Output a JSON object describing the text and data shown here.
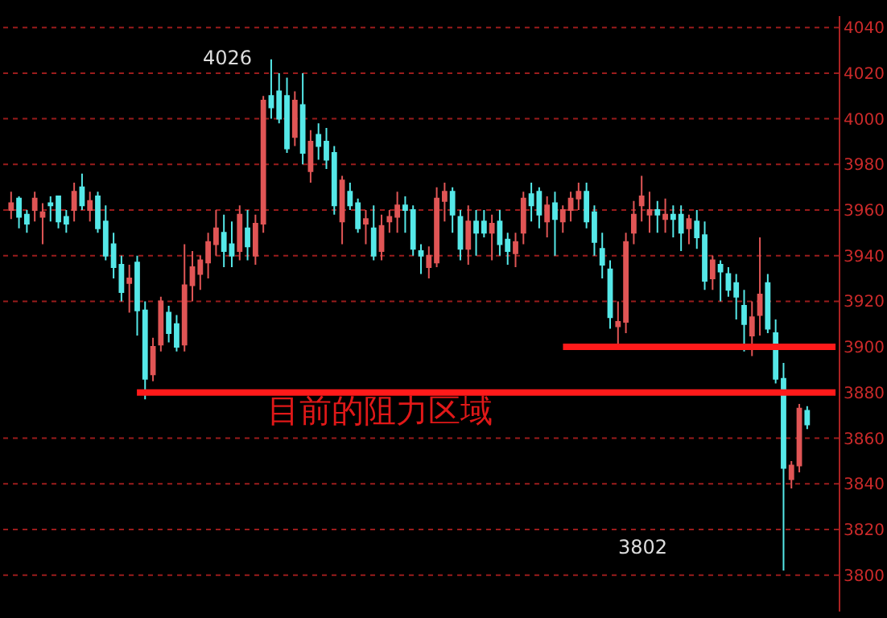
{
  "chart_data": {
    "type": "candlestick",
    "categories": [
      null,
      null,
      null,
      null,
      null,
      null,
      null,
      null,
      null,
      null,
      null,
      null,
      null,
      null,
      null,
      null,
      null,
      null,
      null,
      null,
      null,
      null,
      null,
      null,
      null,
      null,
      null,
      null,
      null,
      null,
      null,
      null,
      null,
      null,
      null,
      null,
      null,
      null,
      null,
      null,
      null,
      null,
      null,
      null,
      null,
      null,
      null,
      null,
      null,
      null,
      null,
      null,
      null,
      null,
      null,
      null,
      null,
      null,
      null,
      null,
      null,
      null,
      null,
      null,
      null,
      null,
      null,
      null,
      null,
      null,
      null,
      null,
      null,
      null,
      null,
      null,
      null,
      null,
      null,
      null,
      null,
      null,
      null,
      null,
      null,
      null,
      null,
      null,
      null,
      null,
      null,
      null,
      null,
      null,
      null,
      null,
      null,
      null,
      null,
      null,
      null,
      null
    ],
    "ohlc": [
      [
        3960,
        3968,
        3956,
        3963
      ],
      [
        3965,
        3966,
        3952,
        3957
      ],
      [
        3958,
        3960,
        3950,
        3954
      ],
      [
        3960,
        3968,
        3955,
        3965
      ],
      [
        3957,
        3963,
        3945,
        3959
      ],
      [
        3963,
        3966,
        3955,
        3962
      ],
      [
        3966,
        3966,
        3952,
        3955
      ],
      [
        3957,
        3960,
        3950,
        3954
      ],
      [
        3960,
        3972,
        3955,
        3968
      ],
      [
        3970,
        3976,
        3960,
        3962
      ],
      [
        3960,
        3968,
        3955,
        3964
      ],
      [
        3966,
        3968,
        3950,
        3952
      ],
      [
        3955,
        3962,
        3938,
        3940
      ],
      [
        3945,
        3950,
        3930,
        3935
      ],
      [
        3936,
        3940,
        3920,
        3924
      ],
      [
        3928,
        3936,
        3915,
        3930
      ],
      [
        3937,
        3940,
        3905,
        3916
      ],
      [
        3916,
        3920,
        3877,
        3886
      ],
      [
        3888,
        3904,
        3885,
        3900
      ],
      [
        3901,
        3922,
        3898,
        3920
      ],
      [
        3915,
        3918,
        3902,
        3906
      ],
      [
        3910,
        3914,
        3898,
        3900
      ],
      [
        3901,
        3945,
        3898,
        3927
      ],
      [
        3927,
        3942,
        3920,
        3935
      ],
      [
        3932,
        3940,
        3925,
        3938
      ],
      [
        3937,
        3950,
        3930,
        3946
      ],
      [
        3945,
        3960,
        3940,
        3952
      ],
      [
        3950,
        3958,
        3935,
        3942
      ],
      [
        3945,
        3955,
        3935,
        3940
      ],
      [
        3942,
        3962,
        3938,
        3958
      ],
      [
        3952,
        3960,
        3938,
        3944
      ],
      [
        3940,
        3958,
        3936,
        3954
      ],
      [
        3954,
        4010,
        3950,
        4008
      ],
      [
        4010,
        4026,
        4000,
        4005
      ],
      [
        4012,
        4020,
        3998,
        4000
      ],
      [
        4010,
        4018,
        3985,
        3987
      ],
      [
        3992,
        4012,
        3988,
        4008
      ],
      [
        4006,
        4020,
        3980,
        3985
      ],
      [
        3977,
        3995,
        3972,
        3990
      ],
      [
        3993,
        3998,
        3982,
        3988
      ],
      [
        3990,
        3996,
        3978,
        3982
      ],
      [
        3985,
        3988,
        3958,
        3962
      ],
      [
        3955,
        3975,
        3945,
        3973
      ],
      [
        3968,
        3972,
        3960,
        3962
      ],
      [
        3963,
        3965,
        3950,
        3952
      ],
      [
        3954,
        3960,
        3945,
        3956
      ],
      [
        3952,
        3962,
        3938,
        3940
      ],
      [
        3942,
        3958,
        3938,
        3953
      ],
      [
        3955,
        3960,
        3950,
        3957
      ],
      [
        3957,
        3968,
        3950,
        3962
      ],
      [
        3962,
        3966,
        3950,
        3960
      ],
      [
        3960,
        3962,
        3940,
        3943
      ],
      [
        3942,
        3945,
        3932,
        3940
      ],
      [
        3935,
        3944,
        3930,
        3940
      ],
      [
        3937,
        3970,
        3935,
        3965
      ],
      [
        3964,
        3972,
        3955,
        3968
      ],
      [
        3968,
        3970,
        3950,
        3958
      ],
      [
        3957,
        3960,
        3938,
        3943
      ],
      [
        3943,
        3962,
        3936,
        3955
      ],
      [
        3955,
        3960,
        3940,
        3950
      ],
      [
        3955,
        3960,
        3948,
        3950
      ],
      [
        3950,
        3958,
        3938,
        3954
      ],
      [
        3955,
        3960,
        3940,
        3945
      ],
      [
        3947,
        3950,
        3936,
        3942
      ],
      [
        3941,
        3950,
        3935,
        3946
      ],
      [
        3950,
        3968,
        3945,
        3965
      ],
      [
        3967,
        3972,
        3955,
        3962
      ],
      [
        3968,
        3970,
        3952,
        3958
      ],
      [
        3955,
        3966,
        3948,
        3962
      ],
      [
        3963,
        3968,
        3940,
        3956
      ],
      [
        3955,
        3962,
        3950,
        3960
      ],
      [
        3960,
        3968,
        3955,
        3965
      ],
      [
        3965,
        3972,
        3960,
        3968
      ],
      [
        3968,
        3972,
        3952,
        3955
      ],
      [
        3959,
        3962,
        3940,
        3946
      ],
      [
        3943,
        3950,
        3930,
        3936
      ],
      [
        3934,
        3938,
        3908,
        3913
      ],
      [
        3909,
        3920,
        3900,
        3911
      ],
      [
        3911,
        3950,
        3906,
        3946
      ],
      [
        3950,
        3964,
        3945,
        3958
      ],
      [
        3962,
        3975,
        3955,
        3966
      ],
      [
        3958,
        3968,
        3950,
        3960
      ],
      [
        3960,
        3964,
        3950,
        3958
      ],
      [
        3956,
        3965,
        3950,
        3958
      ],
      [
        3958,
        3962,
        3948,
        3956
      ],
      [
        3958,
        3962,
        3942,
        3950
      ],
      [
        3952,
        3958,
        3945,
        3956
      ],
      [
        3955,
        3960,
        3943,
        3948
      ],
      [
        3949,
        3955,
        3925,
        3929
      ],
      [
        3930,
        3940,
        3925,
        3938
      ],
      [
        3936,
        3938,
        3920,
        3933
      ],
      [
        3932,
        3935,
        3922,
        3925
      ],
      [
        3928,
        3932,
        3912,
        3922
      ],
      [
        3918,
        3925,
        3898,
        3910
      ],
      [
        3905,
        3920,
        3896,
        3913
      ],
      [
        3914,
        3948,
        3905,
        3923
      ],
      [
        3928,
        3932,
        3906,
        3908
      ],
      [
        3906,
        3912,
        3884,
        3886
      ],
      [
        3886,
        3893,
        3802,
        3847
      ],
      [
        3842,
        3850,
        3838,
        3848
      ],
      [
        3848,
        3875,
        3845,
        3873
      ],
      [
        3872,
        3874,
        3864,
        3866
      ]
    ],
    "colors": [
      "#e05555",
      "#55e8e8",
      "#55e8e8",
      "#e05555",
      "#e05555",
      "#55e8e8",
      "#55e8e8",
      "#55e8e8",
      "#e05555",
      "#55e8e8",
      "#e05555",
      "#55e8e8",
      "#55e8e8",
      "#55e8e8",
      "#55e8e8",
      "#e05555",
      "#55e8e8",
      "#55e8e8",
      "#e05555",
      "#e05555",
      "#55e8e8",
      "#55e8e8",
      "#e05555",
      "#e05555",
      "#e05555",
      "#e05555",
      "#e05555",
      "#55e8e8",
      "#55e8e8",
      "#e05555",
      "#55e8e8",
      "#e05555",
      "#e05555",
      "#55e8e8",
      "#55e8e8",
      "#55e8e8",
      "#e05555",
      "#55e8e8",
      "#e05555",
      "#55e8e8",
      "#55e8e8",
      "#55e8e8",
      "#e05555",
      "#55e8e8",
      "#55e8e8",
      "#e05555",
      "#55e8e8",
      "#e05555",
      "#e05555",
      "#e05555",
      "#55e8e8",
      "#55e8e8",
      "#55e8e8",
      "#e05555",
      "#e05555",
      "#e05555",
      "#55e8e8",
      "#55e8e8",
      "#e05555",
      "#55e8e8",
      "#55e8e8",
      "#e05555",
      "#55e8e8",
      "#55e8e8",
      "#e05555",
      "#e05555",
      "#55e8e8",
      "#55e8e8",
      "#e05555",
      "#55e8e8",
      "#e05555",
      "#e05555",
      "#e05555",
      "#55e8e8",
      "#55e8e8",
      "#55e8e8",
      "#55e8e8",
      "#e05555",
      "#e05555",
      "#e05555",
      "#e05555",
      "#e05555",
      "#55e8e8",
      "#e05555",
      "#55e8e8",
      "#55e8e8",
      "#e05555",
      "#55e8e8",
      "#55e8e8",
      "#e05555",
      "#55e8e8",
      "#55e8e8",
      "#55e8e8",
      "#55e8e8",
      "#e05555",
      "#e05555",
      "#55e8e8",
      "#55e8e8",
      "#55e8e8",
      "#e05555",
      "#e05555",
      "#55e8e8"
    ],
    "ylim": [
      3784,
      4045
    ],
    "yticks": [
      3800,
      3820,
      3840,
      3860,
      3880,
      3900,
      3920,
      3940,
      3960,
      3980,
      4000,
      4020,
      4040
    ],
    "grid": "y",
    "tick_labels": "y",
    "annotations": [
      "4026",
      "3802",
      "目前的阻力区域"
    ],
    "ref_lines": [
      {
        "axis": "y",
        "value": 3900,
        "color": "#ff1a1a"
      },
      {
        "axis": "y",
        "value": 3880,
        "color": "#ff1a1a"
      }
    ]
  }
}
